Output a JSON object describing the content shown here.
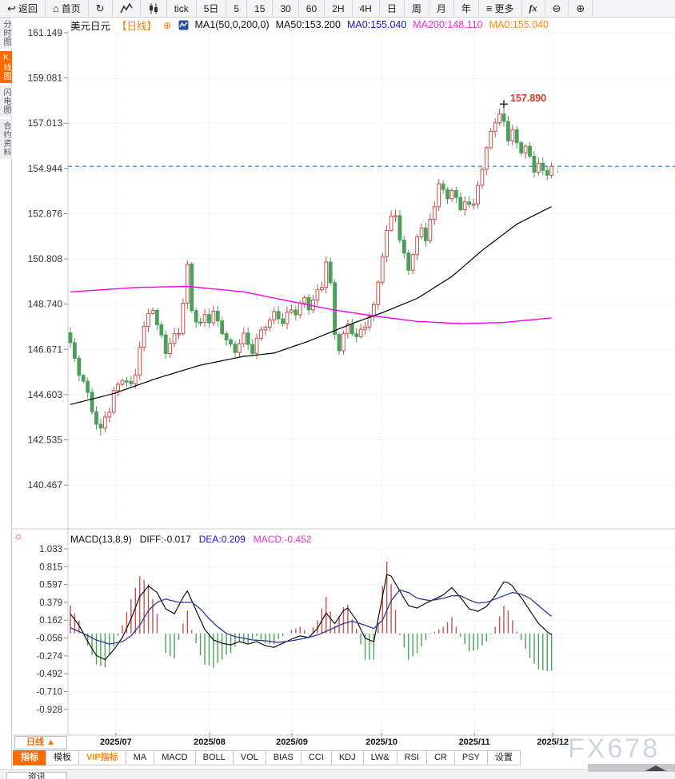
{
  "toolbar": {
    "items": [
      {
        "name": "back-button",
        "icon": "↩",
        "label": "返回"
      },
      {
        "name": "home-button",
        "icon": "⌂",
        "label": "首页"
      },
      {
        "name": "refresh-button",
        "icon": "↻",
        "label": ""
      },
      {
        "name": "line-chart-button",
        "icon": "mountain",
        "label": ""
      },
      {
        "name": "candle-chart-button",
        "icon": "candles",
        "label": ""
      },
      {
        "name": "interval-tick-button",
        "icon": "",
        "label": "tick"
      },
      {
        "name": "interval-5d-button",
        "icon": "",
        "label": "5日"
      },
      {
        "name": "interval-5-button",
        "icon": "",
        "label": "5"
      },
      {
        "name": "interval-15-button",
        "icon": "",
        "label": "15"
      },
      {
        "name": "interval-30-button",
        "icon": "",
        "label": "30"
      },
      {
        "name": "interval-60-button",
        "icon": "",
        "label": "60"
      },
      {
        "name": "interval-2h-button",
        "icon": "",
        "label": "2H"
      },
      {
        "name": "interval-4h-button",
        "icon": "",
        "label": "4H"
      },
      {
        "name": "interval-day-button",
        "icon": "",
        "label": "日"
      },
      {
        "name": "interval-week-button",
        "icon": "",
        "label": "周"
      },
      {
        "name": "interval-month-button",
        "icon": "",
        "label": "月"
      },
      {
        "name": "interval-year-button",
        "icon": "",
        "label": "年"
      },
      {
        "name": "more-button",
        "icon": "≡",
        "label": "更多"
      },
      {
        "name": "fx-indicator-button",
        "icon": "",
        "label": "fx"
      },
      {
        "name": "zoom-out-button",
        "icon": "⊖",
        "label": ""
      },
      {
        "name": "zoom-in-button",
        "icon": "⊕",
        "label": ""
      }
    ]
  },
  "sidebar": {
    "items": [
      {
        "name": "sidebar-item-time-chart",
        "label": "分时图",
        "active": false
      },
      {
        "name": "sidebar-item-kline-chart",
        "label": "K线图",
        "active": true
      },
      {
        "name": "sidebar-item-lightning-chart",
        "label": "闪电图",
        "active": false
      },
      {
        "name": "sidebar-item-contract-info",
        "label": "合约资料",
        "active": false
      }
    ]
  },
  "chart_header": {
    "symbol": "美元日元",
    "period": "【日线】",
    "expand_icon": "⊕",
    "ma_formula": "MA1(50,0,200,0)",
    "ma50": "MA50:153.200",
    "ma0_primary": "MA0:155.040",
    "ma200": "MA200:148.110",
    "ma0_secondary": "MA0:155.040"
  },
  "macd_header": {
    "formula": "MACD(13,8,9)",
    "diff": "DIFF:-0.017",
    "dea": "DEA:0.209",
    "macd": "MACD:-0.452"
  },
  "bottom": {
    "period_button": "日线 ▲",
    "news_tab": "资讯",
    "watermark": "FX678",
    "indicator_tabs": [
      {
        "name": "tab-indicator",
        "label": "指标",
        "state": "active"
      },
      {
        "name": "tab-template",
        "label": "模板",
        "state": ""
      },
      {
        "name": "tab-vip-indicator",
        "label": "VIP指标",
        "state": "vip"
      },
      {
        "name": "tab-ma",
        "label": "MA",
        "state": ""
      },
      {
        "name": "tab-macd",
        "label": "MACD",
        "state": ""
      },
      {
        "name": "tab-boll",
        "label": "BOLL",
        "state": ""
      },
      {
        "name": "tab-vol",
        "label": "VOL",
        "state": ""
      },
      {
        "name": "tab-bias",
        "label": "BIAS",
        "state": ""
      },
      {
        "name": "tab-cci",
        "label": "CCI",
        "state": ""
      },
      {
        "name": "tab-kdj",
        "label": "KDJ",
        "state": ""
      },
      {
        "name": "tab-lw",
        "label": "LW&",
        "state": ""
      },
      {
        "name": "tab-rsi",
        "label": "RSI",
        "state": ""
      },
      {
        "name": "tab-cr",
        "label": "CR",
        "state": ""
      },
      {
        "name": "tab-psy",
        "label": "PSY",
        "state": ""
      },
      {
        "name": "tab-settings",
        "label": "设置",
        "state": ""
      }
    ]
  },
  "colors": {
    "accent_orange": "#ff6a00",
    "candle_up": "#c8504a",
    "candle_down": "#4aa05a",
    "ma50": "#000000",
    "ma200": "#ff00f0",
    "price_line": "#1f78c8",
    "annotation": "#e03428",
    "diff_line": "#111111",
    "dea_line": "#2b3a9e",
    "grid": "#dcdce2",
    "axis_text": "#333333",
    "divider": "#c9c9ce"
  },
  "chart_data": {
    "type": "candlestick_with_macd",
    "symbol": "美元日元 (USD/JPY)",
    "timeframe": "日线 (daily)",
    "x_labels": [
      "2025/07",
      "2025/08",
      "2025/09",
      "2025/10",
      "2025/11",
      "2025/12"
    ],
    "month_indices": [
      10.5,
      32.1,
      51.1,
      71.8,
      93.2,
      111.3
    ],
    "price_axis_ticks": [
      161.149,
      159.081,
      157.013,
      154.944,
      152.876,
      150.808,
      148.74,
      146.671,
      144.603,
      142.535,
      140.467
    ],
    "macd_axis_ticks": [
      1.033,
      0.815,
      0.597,
      0.379,
      0.162,
      -0.056,
      -0.274,
      -0.492,
      -0.71,
      -0.928
    ],
    "current_price": 155.04,
    "peak_annotation": {
      "label": "157.890",
      "value": 157.89,
      "index": 100
    },
    "ma50_last": 153.2,
    "ma200_last": 148.11,
    "diff_last": -0.017,
    "dea_last": 0.209,
    "macd_last": -0.452,
    "n_candles": 112,
    "close_anchors": [
      [
        0,
        146.9
      ],
      [
        1,
        146.2
      ],
      [
        2,
        145.6
      ],
      [
        3,
        145.2
      ],
      [
        4,
        144.6
      ],
      [
        5,
        143.9
      ],
      [
        6,
        143.3
      ],
      [
        7,
        142.95
      ],
      [
        8,
        143.6
      ],
      [
        9,
        143.9
      ],
      [
        10,
        144.7
      ],
      [
        12,
        145.35
      ],
      [
        14,
        145.0
      ],
      [
        15,
        145.6
      ],
      [
        16,
        146.8
      ],
      [
        17,
        147.6
      ],
      [
        18,
        148.35
      ],
      [
        19,
        148.55
      ],
      [
        20,
        147.7
      ],
      [
        21,
        147.3
      ],
      [
        22,
        146.6
      ],
      [
        23,
        146.9
      ],
      [
        24,
        147.3
      ],
      [
        25,
        147.5
      ],
      [
        26,
        148.8
      ],
      [
        27,
        150.45
      ],
      [
        28,
        148.5
      ],
      [
        29,
        148.0
      ],
      [
        30,
        147.8
      ],
      [
        31,
        148.25
      ],
      [
        32,
        148.0
      ],
      [
        33,
        148.35
      ],
      [
        34,
        147.9
      ],
      [
        35,
        147.5
      ],
      [
        36,
        147.1
      ],
      [
        37,
        146.8
      ],
      [
        38,
        146.6
      ],
      [
        39,
        147.0
      ],
      [
        40,
        147.3
      ],
      [
        41,
        146.9
      ],
      [
        42,
        146.6
      ],
      [
        43,
        147.1
      ],
      [
        44,
        147.5
      ],
      [
        45,
        147.8
      ],
      [
        46,
        148.0
      ],
      [
        47,
        148.3
      ],
      [
        48,
        148.15
      ],
      [
        49,
        147.9
      ],
      [
        50,
        148.25
      ],
      [
        51,
        148.5
      ],
      [
        52,
        148.35
      ],
      [
        53,
        148.7
      ],
      [
        54,
        149.0
      ],
      [
        55,
        148.6
      ],
      [
        56,
        148.9
      ],
      [
        57,
        149.3
      ],
      [
        58,
        149.6
      ],
      [
        59,
        150.7
      ],
      [
        60,
        149.6
      ],
      [
        61,
        147.4
      ],
      [
        62,
        146.7
      ],
      [
        63,
        147.3
      ],
      [
        64,
        147.8
      ],
      [
        65,
        147.5
      ],
      [
        66,
        147.2
      ],
      [
        67,
        147.5
      ],
      [
        68,
        147.8
      ],
      [
        69,
        148.2
      ],
      [
        70,
        148.6
      ],
      [
        71,
        149.8
      ],
      [
        72,
        151.0
      ],
      [
        73,
        152.0
      ],
      [
        74,
        152.75
      ],
      [
        75,
        152.9
      ],
      [
        76,
        151.6
      ],
      [
        77,
        151.0
      ],
      [
        78,
        150.4
      ],
      [
        79,
        151.0
      ],
      [
        80,
        151.7
      ],
      [
        81,
        152.3
      ],
      [
        82,
        151.7
      ],
      [
        83,
        152.5
      ],
      [
        84,
        153.2
      ],
      [
        85,
        154.35
      ],
      [
        86,
        153.9
      ],
      [
        87,
        153.5
      ],
      [
        88,
        154.05
      ],
      [
        89,
        153.6
      ],
      [
        90,
        152.95
      ],
      [
        91,
        153.5
      ],
      [
        92,
        153.35
      ],
      [
        93,
        153.2
      ],
      [
        94,
        154.2
      ],
      [
        95,
        155.0
      ],
      [
        96,
        155.8
      ],
      [
        97,
        156.6
      ],
      [
        98,
        157.15
      ],
      [
        99,
        157.4
      ],
      [
        100,
        157.0
      ],
      [
        101,
        156.3
      ],
      [
        102,
        156.75
      ],
      [
        103,
        156.0
      ],
      [
        104,
        155.7
      ],
      [
        105,
        156.05
      ],
      [
        106,
        155.4
      ],
      [
        107,
        154.75
      ],
      [
        108,
        155.3
      ],
      [
        109,
        154.8
      ],
      [
        110,
        154.55
      ],
      [
        111,
        155.04
      ]
    ],
    "ma50_anchors": [
      [
        0,
        144.15
      ],
      [
        10,
        144.65
      ],
      [
        20,
        145.35
      ],
      [
        30,
        145.95
      ],
      [
        40,
        146.35
      ],
      [
        47,
        146.5
      ],
      [
        55,
        147.05
      ],
      [
        65,
        147.85
      ],
      [
        72,
        148.35
      ],
      [
        80,
        149.0
      ],
      [
        88,
        150.0
      ],
      [
        95,
        151.2
      ],
      [
        103,
        152.4
      ],
      [
        111,
        153.2
      ]
    ],
    "ma200_anchors": [
      [
        0,
        149.3
      ],
      [
        15,
        149.5
      ],
      [
        27,
        149.55
      ],
      [
        40,
        149.3
      ],
      [
        50,
        148.9
      ],
      [
        60,
        148.5
      ],
      [
        70,
        148.2
      ],
      [
        80,
        147.95
      ],
      [
        90,
        147.85
      ],
      [
        100,
        147.9
      ],
      [
        111,
        148.11
      ]
    ],
    "diff_anchors": [
      [
        0,
        0.24
      ],
      [
        2,
        0.1
      ],
      [
        4,
        -0.1
      ],
      [
        6,
        -0.27
      ],
      [
        8,
        -0.32
      ],
      [
        10,
        -0.2
      ],
      [
        12,
        -0.05
      ],
      [
        14,
        0.18
      ],
      [
        16,
        0.45
      ],
      [
        18,
        0.58
      ],
      [
        20,
        0.5
      ],
      [
        22,
        0.3
      ],
      [
        24,
        0.24
      ],
      [
        26,
        0.44
      ],
      [
        27,
        0.52
      ],
      [
        29,
        0.28
      ],
      [
        31,
        0.05
      ],
      [
        33,
        -0.08
      ],
      [
        35,
        -0.12
      ],
      [
        37,
        -0.14
      ],
      [
        39,
        -0.1
      ],
      [
        41,
        -0.13
      ],
      [
        43,
        -0.1
      ],
      [
        45,
        -0.15
      ],
      [
        47,
        -0.17
      ],
      [
        49,
        -0.12
      ],
      [
        51,
        -0.07
      ],
      [
        53,
        -0.03
      ],
      [
        55,
        -0.05
      ],
      [
        57,
        0.06
      ],
      [
        59,
        0.25
      ],
      [
        61,
        0.12
      ],
      [
        63,
        0.28
      ],
      [
        64,
        0.31
      ],
      [
        66,
        0.16
      ],
      [
        68,
        -0.06
      ],
      [
        70,
        -0.1
      ],
      [
        72,
        0.45
      ],
      [
        73,
        0.72
      ],
      [
        74,
        0.7
      ],
      [
        75,
        0.61
      ],
      [
        76,
        0.52
      ],
      [
        78,
        0.34
      ],
      [
        80,
        0.31
      ],
      [
        82,
        0.37
      ],
      [
        84,
        0.42
      ],
      [
        86,
        0.47
      ],
      [
        88,
        0.56
      ],
      [
        90,
        0.44
      ],
      [
        92,
        0.3
      ],
      [
        94,
        0.27
      ],
      [
        96,
        0.33
      ],
      [
        98,
        0.46
      ],
      [
        100,
        0.63
      ],
      [
        101,
        0.62
      ],
      [
        102,
        0.58
      ],
      [
        103,
        0.5
      ],
      [
        104,
        0.44
      ],
      [
        106,
        0.28
      ],
      [
        108,
        0.12
      ],
      [
        110,
        0.02
      ],
      [
        111,
        -0.017
      ]
    ],
    "dea_anchors": [
      [
        0,
        0.07
      ],
      [
        3,
        0.0
      ],
      [
        6,
        -0.08
      ],
      [
        9,
        -0.13
      ],
      [
        12,
        -0.1
      ],
      [
        14,
        -0.03
      ],
      [
        16,
        0.1
      ],
      [
        18,
        0.28
      ],
      [
        20,
        0.38
      ],
      [
        22,
        0.42
      ],
      [
        25,
        0.38
      ],
      [
        28,
        0.38
      ],
      [
        30,
        0.3
      ],
      [
        32,
        0.18
      ],
      [
        34,
        0.08
      ],
      [
        36,
        0.0
      ],
      [
        38,
        -0.04
      ],
      [
        40,
        -0.06
      ],
      [
        42,
        -0.08
      ],
      [
        45,
        -0.09
      ],
      [
        48,
        -0.11
      ],
      [
        51,
        -0.09
      ],
      [
        54,
        -0.06
      ],
      [
        57,
        -0.02
      ],
      [
        60,
        0.05
      ],
      [
        63,
        0.12
      ],
      [
        65,
        0.15
      ],
      [
        68,
        0.1
      ],
      [
        70,
        0.06
      ],
      [
        72,
        0.16
      ],
      [
        74,
        0.4
      ],
      [
        76,
        0.53
      ],
      [
        78,
        0.5
      ],
      [
        80,
        0.43
      ],
      [
        83,
        0.4
      ],
      [
        86,
        0.43
      ],
      [
        88,
        0.46
      ],
      [
        90,
        0.46
      ],
      [
        92,
        0.41
      ],
      [
        94,
        0.37
      ],
      [
        96,
        0.38
      ],
      [
        98,
        0.42
      ],
      [
        100,
        0.46
      ],
      [
        102,
        0.5
      ],
      [
        104,
        0.48
      ],
      [
        106,
        0.43
      ],
      [
        108,
        0.34
      ],
      [
        110,
        0.25
      ],
      [
        111,
        0.209
      ]
    ]
  }
}
